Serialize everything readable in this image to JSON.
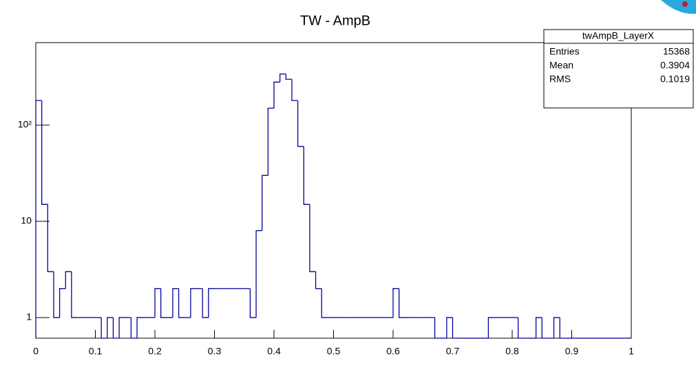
{
  "chart_data": {
    "type": "histogram",
    "title": "TW - AmpB",
    "color": "#000099",
    "log_y": true,
    "bins": [
      0,
      0.01,
      0.02,
      0.03,
      0.04,
      0.05,
      0.06,
      0.07,
      0.08,
      0.09,
      0.1,
      0.11,
      0.12,
      0.13,
      0.14,
      0.15,
      0.16,
      0.17,
      0.18,
      0.19,
      0.2,
      0.21,
      0.22,
      0.23,
      0.24,
      0.25,
      0.26,
      0.27,
      0.28,
      0.29,
      0.3,
      0.31,
      0.32,
      0.33,
      0.34,
      0.35,
      0.36,
      0.37,
      0.38,
      0.39,
      0.4,
      0.41,
      0.42,
      0.43,
      0.44,
      0.45,
      0.46,
      0.47,
      0.48,
      0.49,
      0.5,
      0.51,
      0.52,
      0.53,
      0.54,
      0.55,
      0.56,
      0.57,
      0.58,
      0.59,
      0.6,
      0.61,
      0.62,
      0.63,
      0.64,
      0.65,
      0.66,
      0.67,
      0.68,
      0.69,
      0.7,
      0.71,
      0.72,
      0.73,
      0.74,
      0.75,
      0.76,
      0.77,
      0.78,
      0.79,
      0.8,
      0.81,
      0.82,
      0.83,
      0.84,
      0.85,
      0.86,
      0.87,
      0.88,
      0.89,
      0.9,
      0.91,
      0.92,
      0.93,
      0.94,
      0.95,
      0.96,
      0.97,
      0.98,
      0.99,
      1
    ],
    "values": [
      180,
      15,
      3,
      1,
      2,
      3,
      1,
      1,
      1,
      1,
      1,
      0,
      1,
      0,
      1,
      1,
      0,
      1,
      1,
      1,
      2,
      1,
      1,
      2,
      1,
      1,
      2,
      2,
      1,
      2,
      2,
      2,
      2,
      2,
      2,
      2,
      1,
      8,
      30,
      150,
      280,
      340,
      300,
      180,
      60,
      15,
      3,
      2,
      1,
      1,
      1,
      1,
      1,
      1,
      1,
      1,
      1,
      1,
      1,
      1,
      2,
      1,
      1,
      1,
      1,
      1,
      1,
      0,
      0,
      1,
      0,
      0,
      0,
      0,
      0,
      0,
      1,
      1,
      1,
      1,
      1,
      0,
      0,
      0,
      1,
      0,
      0,
      1,
      0,
      0,
      0,
      0,
      0,
      0,
      0,
      0,
      0,
      0,
      0,
      0
    ],
    "xlim": [
      0,
      1
    ],
    "xticks": [
      0,
      0.1,
      0.2,
      0.3,
      0.4,
      0.5,
      0.6,
      0.7,
      0.8,
      0.9,
      1
    ],
    "ylim": [
      0.61,
      720
    ],
    "yticks": [
      1,
      10,
      {
        "value": 100,
        "label": "10²"
      }
    ],
    "stats": {
      "name": "twAmpB_LayerX",
      "rows": [
        [
          "Entries",
          15368
        ],
        [
          "Mean",
          0.3904
        ],
        [
          "RMS",
          0.1019
        ]
      ]
    }
  }
}
